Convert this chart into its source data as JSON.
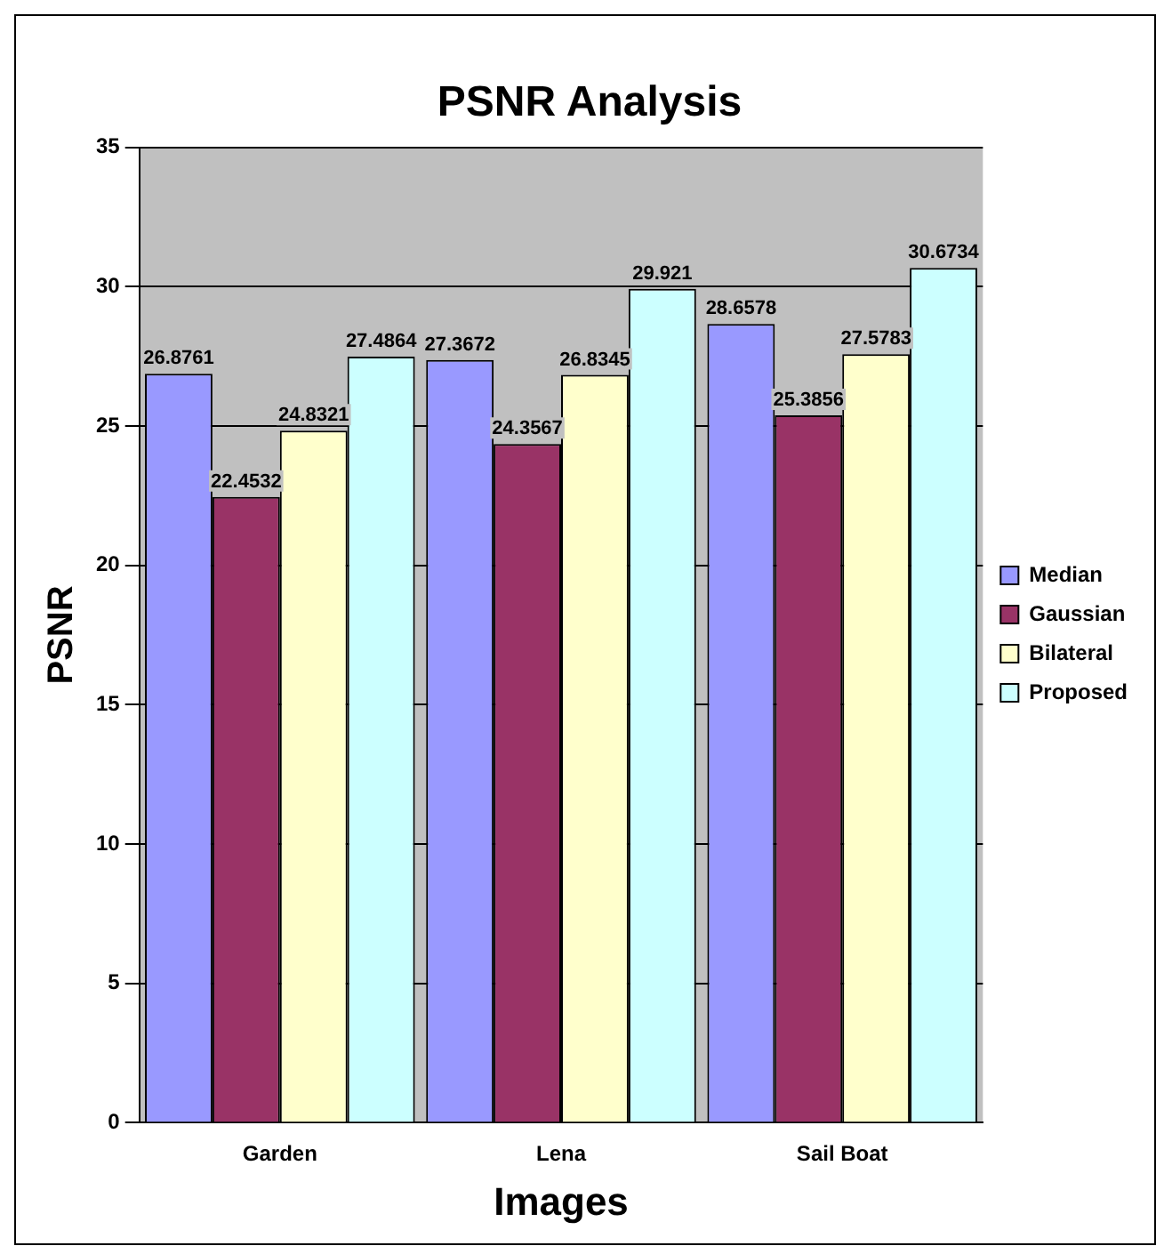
{
  "chart_data": {
    "type": "bar",
    "title": "PSNR Analysis",
    "xlabel": "Images",
    "ylabel": "PSNR",
    "categories": [
      "Garden",
      "Lena",
      "Sail Boat"
    ],
    "series": [
      {
        "name": "Median",
        "color": "#9999ff",
        "values": [
          26.8761,
          27.3672,
          28.6578
        ]
      },
      {
        "name": "Gaussian",
        "color": "#993366",
        "values": [
          22.4532,
          24.3567,
          25.3856
        ]
      },
      {
        "name": "Bilateral",
        "color": "#ffffcc",
        "values": [
          24.8321,
          26.8345,
          27.5783
        ]
      },
      {
        "name": "Proposed",
        "color": "#ccffff",
        "values": [
          27.4864,
          29.921,
          30.6734
        ]
      }
    ],
    "ylim": [
      0,
      35
    ],
    "yticks": [
      0,
      5,
      10,
      15,
      20,
      25,
      30,
      35
    ],
    "grid": "y",
    "legend": "right",
    "data_labels": true
  }
}
